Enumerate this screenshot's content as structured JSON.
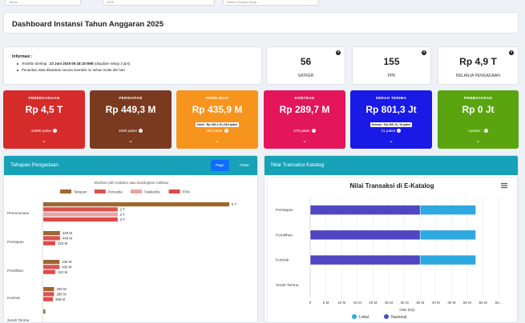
{
  "topbar": {
    "fields": [
      "Tahun",
      "2025",
      "Semua Satuan Kerja"
    ]
  },
  "dashboard_title": "Dashboard Instansi Tahun Anggaran 2025",
  "info": {
    "heading": "Informasi :",
    "line1_prefix": "Terakhir direkap : ",
    "line1_date": "23 Juni 2025 06:18:18 WIB",
    "line1_suffix": " (diupdate setiap 3 jam)",
    "line2": "Penarikan data dilakukan secara otomatis 1x sehari mulai dini hari"
  },
  "stats": [
    {
      "value": "56",
      "label": "SATKER"
    },
    {
      "value": "155",
      "label": "PPK"
    },
    {
      "value": "Rp 4,9 T",
      "label": "BELANJA PENGADAAN"
    }
  ],
  "categories": [
    {
      "title": "PERENCANAAN",
      "amount": "Rp 4,5 T",
      "sub": "",
      "paket": "13680 paket",
      "color": "#d62b2b"
    },
    {
      "title": "PERSIAPAN",
      "amount": "Rp 449,3 M",
      "sub": "",
      "paket": "1000 paket",
      "color": "#7a3a20"
    },
    {
      "title": "PEMILIHAN",
      "amount": "Rp 435,9 M",
      "sub": "Hasil : Rp 352,1 M | 819 paket",
      "paket": "863 paket",
      "color": "#f7941d"
    },
    {
      "title": "KONTRAK",
      "amount": "Rp 289,7 M",
      "sub": "",
      "paket": "273 paket",
      "color": "#d4145a"
    },
    {
      "title": "SERAH TERIMA",
      "amount": "Rp 801,3 Jt",
      "sub": "Selesai : Rp 495 Jt | 19 paket",
      "paket": "21 paket",
      "color": "#1a1ae6"
    },
    {
      "title": "PEMBAYARAN",
      "amount": "Rp 0 Jt",
      "sub": "",
      "paket": "Update :",
      "color": "#5aa50f"
    }
  ],
  "left_panel": {
    "title": "Tahapan Pengadaan",
    "toggle": [
      "Pagu",
      "Paket"
    ],
    "chart_data": {
      "type": "bar",
      "orientation": "horizontal",
      "subtitle": "Silahkan pilih indikator atau bandingkan indikator",
      "categories": [
        "Perencanaan",
        "Persiapan",
        "Pemilihan",
        "Kontrak",
        "Serah Terima"
      ],
      "series": [
        {
          "name": "Tahapan",
          "color": "#a0662e",
          "values": [
            5,
            0.4493,
            0.4359,
            0.2897,
            0.0008
          ],
          "labels": [
            "5 T",
            "449 M",
            "436 M",
            "290 M",
            ""
          ]
        },
        {
          "name": "Penyedia",
          "color": "#d9534f",
          "values": [
            2,
            0.4493,
            0.4359,
            0.2897,
            0
          ],
          "labels": [
            "2 T",
            "449 M",
            "436 M",
            "290 M",
            ""
          ]
        },
        {
          "name": "Swakelola",
          "color": "#e8a5a5",
          "values": [
            2,
            0,
            0,
            0,
            0
          ],
          "labels": [
            "2 T",
            "",
            "",
            "",
            ""
          ]
        },
        {
          "name": "PDN",
          "color": "#e04a4a",
          "values": [
            2,
            0.323,
            0.322,
            0.258,
            0
          ],
          "labels": [
            "2 T",
            "323 M",
            "322 M",
            "258 M",
            ""
          ]
        }
      ]
    }
  },
  "right_panel": {
    "title": "Nilai Transaksi Katalog",
    "chart_data": {
      "type": "bar",
      "orientation": "horizontal",
      "stacked": true,
      "title": "Nilai Transaksi di E-Katalog",
      "xlabel": "Nilai (Rp)",
      "categories": [
        "Persiapan",
        "Pemilihan",
        "Kontrak",
        "Serah Terima"
      ],
      "ticks": [
        "0",
        "5 M",
        "10 M",
        "15 M",
        "20 M",
        "25 M",
        "30 M",
        "35 M",
        "40 M",
        "45 M",
        "50 M",
        "55 M",
        "60..."
      ],
      "xlim": [
        0,
        62
      ],
      "series": [
        {
          "name": "Lokal",
          "color": "#2ea8e0",
          "values": [
            17.7,
            17.7,
            17.7,
            0
          ]
        },
        {
          "name": "Nasional",
          "color": "#5046c2",
          "values": [
            35,
            35,
            35,
            0
          ]
        }
      ]
    }
  }
}
